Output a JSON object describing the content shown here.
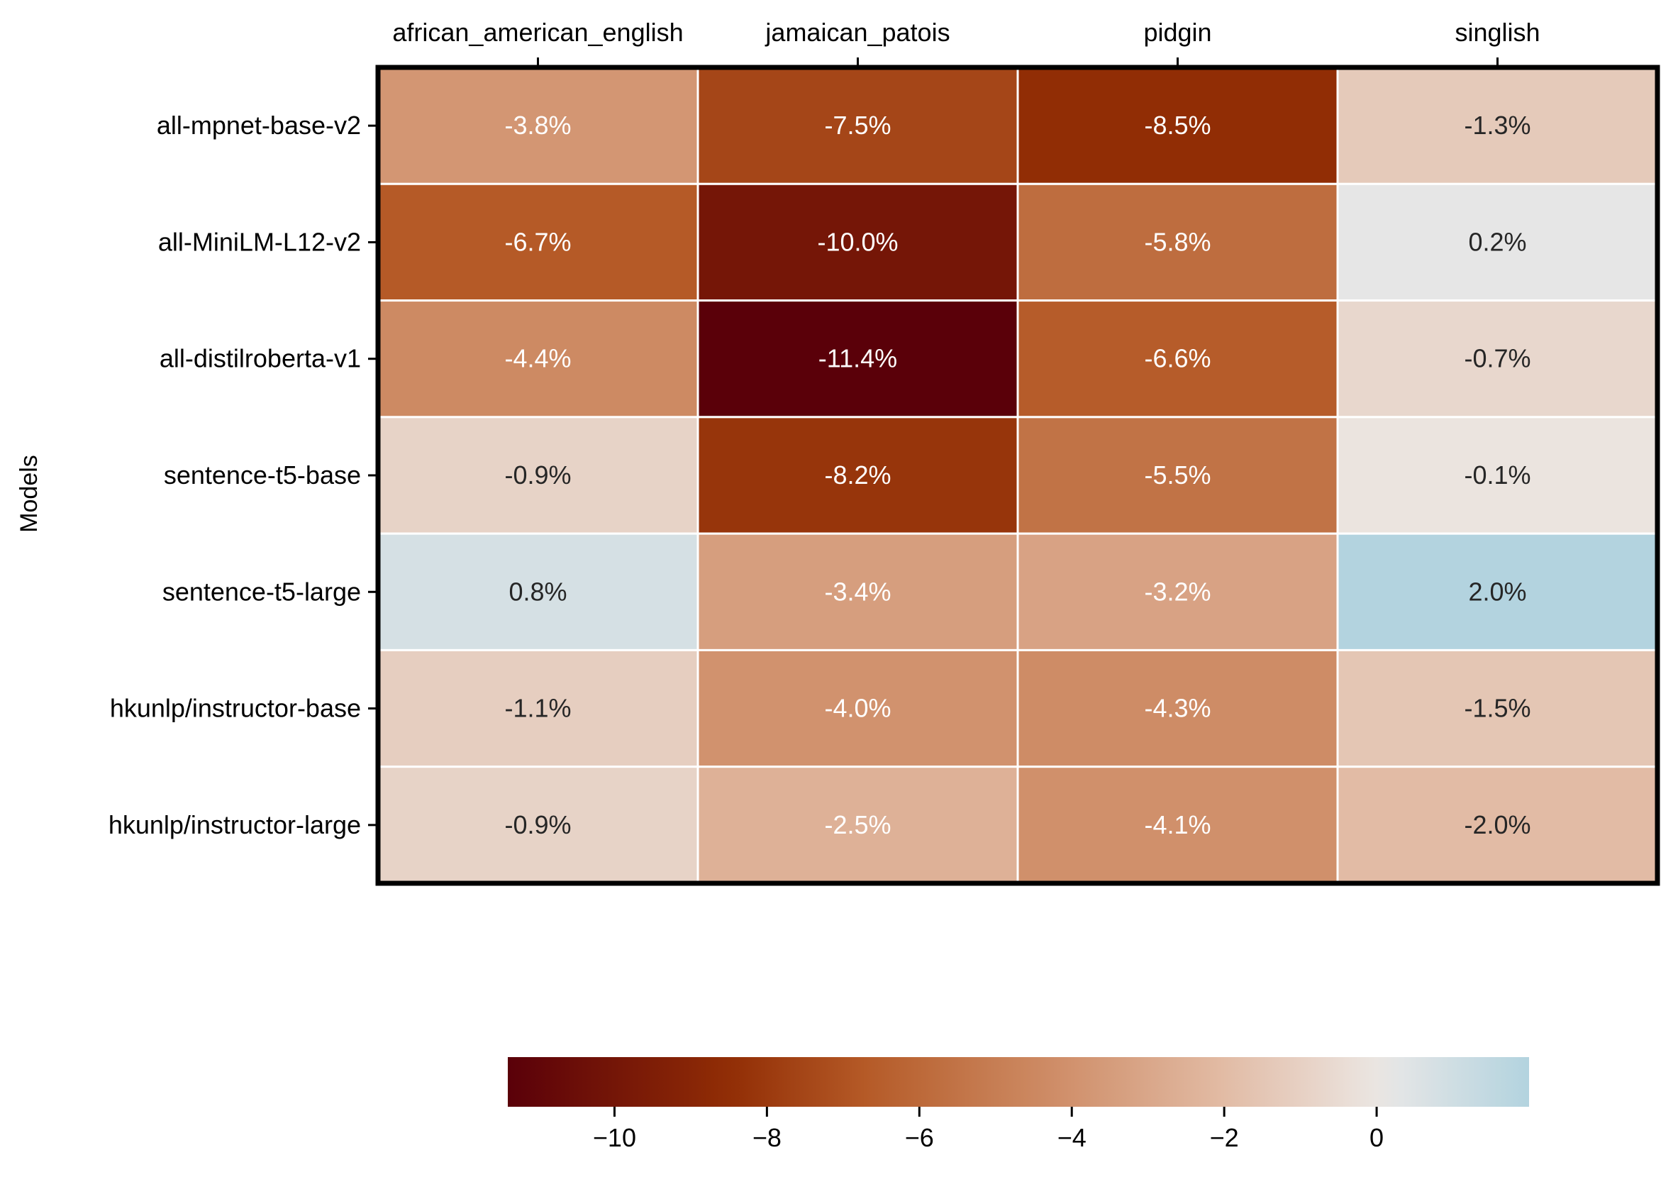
{
  "chart_data": {
    "type": "heatmap",
    "title": "",
    "xlabel": "",
    "ylabel": "Models",
    "columns": [
      "african_american_english",
      "jamaican_patois",
      "pidgin",
      "singlish"
    ],
    "rows": [
      "all-mpnet-base-v2",
      "all-MiniLM-L12-v2",
      "all-distilroberta-v1",
      "sentence-t5-base",
      "sentence-t5-large",
      "hkunlp/instructor-base",
      "hkunlp/instructor-large"
    ],
    "values": [
      [
        -3.8,
        -7.5,
        -8.5,
        -1.3
      ],
      [
        -6.7,
        -10.0,
        -5.8,
        0.2
      ],
      [
        -4.4,
        -11.4,
        -6.6,
        -0.7
      ],
      [
        -0.9,
        -8.2,
        -5.5,
        -0.1
      ],
      [
        0.8,
        -3.4,
        -3.2,
        2.0
      ],
      [
        -1.1,
        -4.0,
        -4.3,
        -1.5
      ],
      [
        -0.9,
        -2.5,
        -4.1,
        -2.0
      ]
    ],
    "value_labels": [
      [
        "-3.8%",
        "-7.5%",
        "-8.5%",
        "-1.3%"
      ],
      [
        "-6.7%",
        "-10.0%",
        "-5.8%",
        "0.2%"
      ],
      [
        "-4.4%",
        "-11.4%",
        "-6.6%",
        "-0.7%"
      ],
      [
        "-0.9%",
        "-8.2%",
        "-5.5%",
        "-0.1%"
      ],
      [
        "0.8%",
        "-3.4%",
        "-3.2%",
        "2.0%"
      ],
      [
        "-1.1%",
        "-4.0%",
        "-4.3%",
        "-1.5%"
      ],
      [
        "-0.9%",
        "-2.5%",
        "-4.1%",
        "-2.0%"
      ]
    ],
    "colorbar": {
      "orientation": "horizontal",
      "placement": "bottom",
      "range": [
        -11.4,
        2.0
      ],
      "ticks": [
        -10,
        -8,
        -6,
        -4,
        -2,
        0
      ],
      "tick_labels": [
        "−10",
        "−8",
        "−6",
        "−4",
        "−2",
        "0"
      ]
    },
    "colormap": {
      "anchors": [
        {
          "value": -11.4,
          "color": "#5a0009"
        },
        {
          "value": -8.5,
          "color": "#912d05"
        },
        {
          "value": -6.7,
          "color": "#b55a27"
        },
        {
          "value": -4.1,
          "color": "#d0906b"
        },
        {
          "value": -2.0,
          "color": "#e2bba5"
        },
        {
          "value": -0.1,
          "color": "#ebe4df"
        },
        {
          "value": 0.2,
          "color": "#e6e6e6"
        },
        {
          "value": 2.0,
          "color": "#b3d3df"
        }
      ],
      "light_text_color": "#ffffff",
      "dark_text_color": "#262626"
    }
  }
}
